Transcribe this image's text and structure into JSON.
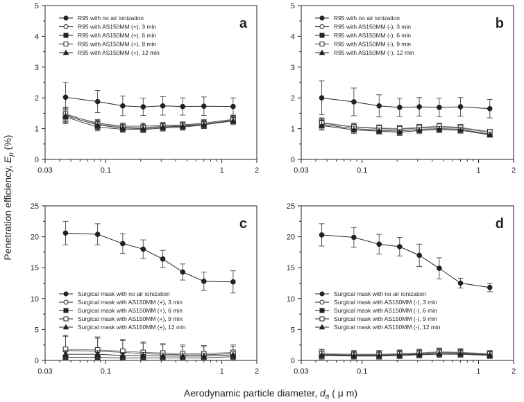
{
  "figure": {
    "ylabel_main": "Penetration efficiency, ",
    "ylabel_sym": "E",
    "ylabel_sub": "p",
    "ylabel_unit": " (%)",
    "xlabel_main": "Aerodynamic particle diameter, ",
    "xlabel_sym": "d",
    "xlabel_sub": "a",
    "xlabel_unit": " ( μ m)"
  },
  "chart_data": [
    {
      "type": "line",
      "panel": "a",
      "x": [
        0.045,
        0.085,
        0.14,
        0.21,
        0.31,
        0.46,
        0.7,
        1.25
      ],
      "xlim": [
        0.03,
        2
      ],
      "x_scale": "log",
      "ylim": [
        0,
        5
      ],
      "xticks": [
        "0.03",
        "0.1",
        "1",
        "2"
      ],
      "yticks": [
        "0",
        "1",
        "2",
        "3",
        "4",
        "5"
      ],
      "legend_position": "top-left",
      "series": [
        {
          "name": "R95 with no air ionization",
          "marker": "filled-circle",
          "values": [
            2.02,
            1.88,
            1.74,
            1.71,
            1.74,
            1.72,
            1.73,
            1.72
          ],
          "errors": [
            0.48,
            0.36,
            0.32,
            0.28,
            0.3,
            0.28,
            0.3,
            0.28
          ]
        },
        {
          "name": "R95 with AS150MM (+), 3 min",
          "marker": "open-circle",
          "values": [
            1.45,
            1.18,
            1.08,
            1.08,
            1.1,
            1.12,
            1.18,
            1.3
          ],
          "errors": [
            0.22,
            0.12,
            0.1,
            0.1,
            0.1,
            0.1,
            0.12,
            0.12
          ]
        },
        {
          "name": "R95 with AS150MM (+), 6 min",
          "marker": "filled-square",
          "values": [
            1.38,
            1.05,
            0.98,
            0.97,
            1.02,
            1.05,
            1.12,
            1.28
          ],
          "errors": [
            0.22,
            0.12,
            0.1,
            0.1,
            0.1,
            0.1,
            0.12,
            0.12
          ]
        },
        {
          "name": "R95 with AS150MM (+), 9 min",
          "marker": "open-square",
          "values": [
            1.48,
            1.15,
            1.05,
            1.03,
            1.08,
            1.1,
            1.15,
            1.28
          ],
          "errors": [
            0.22,
            0.12,
            0.1,
            0.1,
            0.1,
            0.1,
            0.12,
            0.12
          ]
        },
        {
          "name": "R95 with AS150MM (+), 12 min",
          "marker": "filled-triangle",
          "values": [
            1.42,
            1.12,
            1.02,
            1.0,
            1.05,
            1.08,
            1.13,
            1.25
          ],
          "errors": [
            0.22,
            0.12,
            0.1,
            0.1,
            0.1,
            0.1,
            0.12,
            0.12
          ]
        }
      ]
    },
    {
      "type": "line",
      "panel": "b",
      "x": [
        0.045,
        0.085,
        0.14,
        0.21,
        0.31,
        0.46,
        0.7,
        1.25
      ],
      "xlim": [
        0.03,
        2
      ],
      "x_scale": "log",
      "ylim": [
        0,
        5
      ],
      "xticks": [
        "0.03",
        "0.1",
        "1",
        "2"
      ],
      "yticks": [
        "0",
        "1",
        "2",
        "3",
        "4",
        "5"
      ],
      "legend_position": "top-left",
      "series": [
        {
          "name": "R95 with no air ionization",
          "marker": "filled-circle",
          "values": [
            2.0,
            1.87,
            1.74,
            1.69,
            1.71,
            1.69,
            1.71,
            1.65
          ],
          "errors": [
            0.55,
            0.45,
            0.36,
            0.3,
            0.3,
            0.3,
            0.3,
            0.3
          ]
        },
        {
          "name": "R95 with AS150MM (-), 3 min",
          "marker": "open-circle",
          "values": [
            1.18,
            1.05,
            1.0,
            0.98,
            1.02,
            1.05,
            1.02,
            0.88
          ],
          "errors": [
            0.15,
            0.12,
            0.1,
            0.1,
            0.1,
            0.1,
            0.1,
            0.08
          ]
        },
        {
          "name": "R95 with AS150MM (-), 6 min",
          "marker": "filled-square",
          "values": [
            1.14,
            1.0,
            0.95,
            0.92,
            0.98,
            1.0,
            0.98,
            0.82
          ],
          "errors": [
            0.15,
            0.12,
            0.1,
            0.1,
            0.1,
            0.1,
            0.1,
            0.08
          ]
        },
        {
          "name": "R95 with AS150MM (-), 9 min",
          "marker": "open-square",
          "values": [
            1.2,
            1.06,
            1.02,
            1.0,
            1.04,
            1.08,
            1.04,
            0.9
          ],
          "errors": [
            0.15,
            0.12,
            0.1,
            0.1,
            0.1,
            0.1,
            0.1,
            0.08
          ]
        },
        {
          "name": "R95 with AS150MM (-), 12 min",
          "marker": "filled-triangle",
          "values": [
            1.1,
            0.96,
            0.92,
            0.88,
            0.94,
            0.97,
            0.95,
            0.8
          ],
          "errors": [
            0.15,
            0.12,
            0.1,
            0.1,
            0.1,
            0.1,
            0.1,
            0.08
          ]
        }
      ]
    },
    {
      "type": "line",
      "panel": "c",
      "x": [
        0.045,
        0.085,
        0.14,
        0.21,
        0.31,
        0.46,
        0.7,
        1.25
      ],
      "xlim": [
        0.03,
        2
      ],
      "x_scale": "log",
      "ylim": [
        0,
        25
      ],
      "xticks": [
        "0.03",
        "0.1",
        "1",
        "2"
      ],
      "yticks": [
        "0",
        "5",
        "10",
        "15",
        "20",
        "25"
      ],
      "legend_position": "bottom-left",
      "series": [
        {
          "name": "Surgical mask with no air ionization",
          "marker": "filled-circle",
          "values": [
            20.6,
            20.4,
            18.9,
            18.0,
            16.4,
            14.3,
            12.8,
            12.7
          ],
          "errors": [
            1.9,
            1.7,
            1.6,
            1.5,
            1.4,
            1.3,
            1.5,
            1.8
          ]
        },
        {
          "name": "Surgical mask with AS150MM (+), 3 min",
          "marker": "open-circle",
          "values": [
            1.6,
            1.5,
            1.3,
            1.1,
            1.0,
            0.9,
            0.9,
            1.1
          ],
          "errors": [
            2.3,
            2.1,
            1.9,
            1.7,
            1.5,
            1.4,
            1.3,
            1.2
          ]
        },
        {
          "name": "Surgical mask with AS150MM (+), 6 min",
          "marker": "filled-square",
          "values": [
            0.5,
            0.5,
            0.4,
            0.4,
            0.4,
            0.4,
            0.4,
            0.6
          ],
          "errors": [
            0.3,
            0.3,
            0.3,
            0.3,
            0.3,
            0.3,
            0.3,
            0.3
          ]
        },
        {
          "name": "Surgical mask with AS150MM (+), 9 min",
          "marker": "open-square",
          "values": [
            1.8,
            1.7,
            1.5,
            1.3,
            1.2,
            1.1,
            1.1,
            1.3
          ],
          "errors": [
            2.3,
            2.1,
            1.9,
            1.7,
            1.5,
            1.4,
            1.3,
            1.2
          ]
        },
        {
          "name": "Surgical mask with AS150MM (+), 12 min",
          "marker": "filled-triangle",
          "values": [
            1.0,
            1.0,
            0.8,
            0.8,
            0.7,
            0.7,
            0.7,
            0.9
          ],
          "errors": [
            0.6,
            0.6,
            0.5,
            0.5,
            0.5,
            0.5,
            0.5,
            0.5
          ]
        }
      ]
    },
    {
      "type": "line",
      "panel": "d",
      "x": [
        0.045,
        0.085,
        0.14,
        0.21,
        0.31,
        0.46,
        0.7,
        1.25
      ],
      "xlim": [
        0.03,
        2
      ],
      "x_scale": "log",
      "ylim": [
        0,
        25
      ],
      "xticks": [
        "0.03",
        "0.1",
        "1",
        "2"
      ],
      "yticks": [
        "0",
        "5",
        "10",
        "15",
        "20",
        "25"
      ],
      "legend_position": "bottom-left",
      "series": [
        {
          "name": "Surgical mask with no air ionization",
          "marker": "filled-circle",
          "values": [
            20.3,
            19.9,
            18.8,
            18.4,
            17.0,
            14.9,
            12.5,
            11.8
          ],
          "errors": [
            1.8,
            1.6,
            1.6,
            1.5,
            1.8,
            1.7,
            0.8,
            0.7
          ]
        },
        {
          "name": "Surgical mask with AS150MM (-), 3 min",
          "marker": "open-circle",
          "values": [
            1.0,
            0.9,
            0.9,
            1.0,
            1.1,
            1.3,
            1.2,
            1.0
          ],
          "errors": [
            0.7,
            0.6,
            0.6,
            0.6,
            0.6,
            0.6,
            0.6,
            0.5
          ]
        },
        {
          "name": "Surgical mask with AS150MM (-), 6 min",
          "marker": "filled-square",
          "values": [
            0.8,
            0.7,
            0.7,
            0.8,
            0.9,
            1.0,
            1.0,
            0.8
          ],
          "errors": [
            0.6,
            0.5,
            0.5,
            0.5,
            0.5,
            0.5,
            0.5,
            0.5
          ]
        },
        {
          "name": "Surgical mask with AS150MM (-), 9 min",
          "marker": "open-square",
          "values": [
            1.1,
            1.0,
            1.0,
            1.1,
            1.2,
            1.4,
            1.3,
            1.1
          ],
          "errors": [
            0.7,
            0.6,
            0.6,
            0.6,
            0.6,
            0.6,
            0.6,
            0.5
          ]
        },
        {
          "name": "Surgical mask with AS150MM (-), 12 min",
          "marker": "filled-triangle",
          "values": [
            0.9,
            0.8,
            0.8,
            0.9,
            1.0,
            1.1,
            1.1,
            0.9
          ],
          "errors": [
            0.6,
            0.5,
            0.5,
            0.5,
            0.5,
            0.5,
            0.5,
            0.5
          ]
        }
      ]
    }
  ]
}
